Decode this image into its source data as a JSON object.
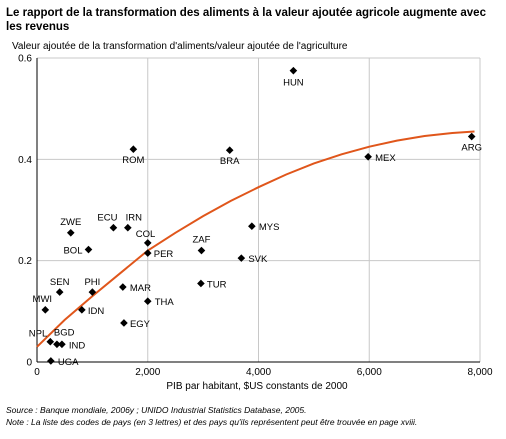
{
  "title": "Le rapport de la transformation des aliments à la valeur ajoutée agricole augmente avec les revenus",
  "notes": {
    "source": "Source : Banque mondiale, 2006y ; UNIDO Industrial Statistics Database, 2005.",
    "note": "Note : La liste des codes de pays (en 3 lettres) et des pays qu'ils représentent peut être trouvée en page xviii."
  },
  "chart_data": {
    "type": "scatter",
    "ylabel": "Valeur ajoutée de la transformation d'aliments/valeur ajoutée de l'agriculture",
    "xlabel": "PIB par habitant, $US constants de 2000",
    "xlim": [
      0,
      8000
    ],
    "ylim": [
      0,
      0.6
    ],
    "xticks": [
      0,
      2000,
      4000,
      6000,
      8000
    ],
    "xtick_labels": [
      "0",
      "2,000",
      "4,000",
      "6,000",
      "8,000"
    ],
    "yticks": [
      0,
      0.2,
      0.4,
      0.6
    ],
    "ytick_labels": [
      "0",
      "0.2",
      "0.4",
      "0.6"
    ],
    "grid": true,
    "marker_color": "#000000",
    "trend_color": "#e0561b",
    "points": [
      {
        "label": "HUN",
        "x": 4630,
        "y": 0.575
      },
      {
        "label": "ARG",
        "x": 7850,
        "y": 0.445
      },
      {
        "label": "ROM",
        "x": 1740,
        "y": 0.42
      },
      {
        "label": "BRA",
        "x": 3480,
        "y": 0.418
      },
      {
        "label": "MEX",
        "x": 5980,
        "y": 0.405
      },
      {
        "label": "MYS",
        "x": 3880,
        "y": 0.268
      },
      {
        "label": "ECU",
        "x": 1380,
        "y": 0.265
      },
      {
        "label": "IRN",
        "x": 1640,
        "y": 0.265
      },
      {
        "label": "ZWE",
        "x": 610,
        "y": 0.255
      },
      {
        "label": "COL",
        "x": 2000,
        "y": 0.235
      },
      {
        "label": "BOL",
        "x": 930,
        "y": 0.222
      },
      {
        "label": "ZAF",
        "x": 2970,
        "y": 0.22
      },
      {
        "label": "PER",
        "x": 2000,
        "y": 0.215
      },
      {
        "label": "SVK",
        "x": 3690,
        "y": 0.205
      },
      {
        "label": "TUR",
        "x": 2960,
        "y": 0.155
      },
      {
        "label": "MAR",
        "x": 1550,
        "y": 0.148
      },
      {
        "label": "SEN",
        "x": 410,
        "y": 0.138
      },
      {
        "label": "PHI",
        "x": 1000,
        "y": 0.138
      },
      {
        "label": "THA",
        "x": 2000,
        "y": 0.12
      },
      {
        "label": "MWI",
        "x": 150,
        "y": 0.103
      },
      {
        "label": "IDN",
        "x": 810,
        "y": 0.103
      },
      {
        "label": "EGY",
        "x": 1570,
        "y": 0.077
      },
      {
        "label": "NPL",
        "x": 240,
        "y": 0.04
      },
      {
        "label": "BGD",
        "x": 360,
        "y": 0.035
      },
      {
        "label": "IND",
        "x": 450,
        "y": 0.035
      },
      {
        "label": "UGA",
        "x": 250,
        "y": 0.002
      }
    ],
    "trend": {
      "x": [
        0,
        500,
        1000,
        1500,
        2000,
        2500,
        3000,
        3500,
        4000,
        4500,
        5000,
        5500,
        6000,
        6500,
        7000,
        7500,
        7900
      ],
      "y": [
        0.03,
        0.083,
        0.13,
        0.175,
        0.22,
        0.255,
        0.288,
        0.318,
        0.345,
        0.37,
        0.392,
        0.41,
        0.425,
        0.437,
        0.446,
        0.452,
        0.455
      ]
    }
  }
}
